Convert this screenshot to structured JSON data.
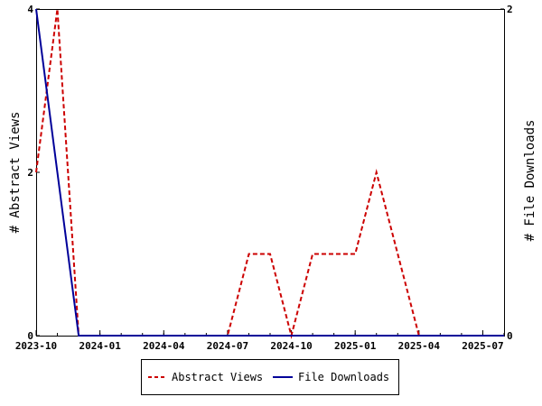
{
  "chart_data": {
    "type": "line",
    "x_axis": {
      "type": "date",
      "range": [
        "2023-10",
        "2025-08"
      ],
      "tick_labels": [
        "2023-10",
        "2024-01",
        "2024-04",
        "2024-07",
        "2024-10",
        "2025-01",
        "2025-04",
        "2025-07"
      ]
    },
    "y_left": {
      "label": "# Abstract Views",
      "range": [
        0,
        4
      ],
      "tick_labels": [
        "0",
        "2",
        "4"
      ]
    },
    "y_right": {
      "label": "# File Downloads",
      "range": [
        0,
        2
      ],
      "tick_labels": [
        "0",
        "2"
      ]
    },
    "series": [
      {
        "name": "Abstract Views",
        "axis": "left",
        "color": "#cc0000",
        "style": "dashed",
        "x": [
          "2023-10",
          "2023-11",
          "2023-12",
          "2024-01",
          "2024-02",
          "2024-03",
          "2024-04",
          "2024-05",
          "2024-06",
          "2024-07",
          "2024-08",
          "2024-09",
          "2024-10",
          "2024-11",
          "2024-12",
          "2025-01",
          "2025-02",
          "2025-03",
          "2025-04",
          "2025-05",
          "2025-06",
          "2025-07",
          "2025-08"
        ],
        "values": [
          2,
          4,
          0,
          0,
          0,
          0,
          0,
          0,
          0,
          0,
          1,
          1,
          0,
          1,
          1,
          1,
          2,
          1,
          0,
          0,
          0,
          0,
          0
        ]
      },
      {
        "name": "File Downloads",
        "axis": "right",
        "color": "#000099",
        "style": "solid",
        "x": [
          "2023-10",
          "2023-11",
          "2023-12",
          "2024-01",
          "2024-02",
          "2024-03",
          "2024-04",
          "2024-05",
          "2024-06",
          "2024-07",
          "2024-08",
          "2024-09",
          "2024-10",
          "2024-11",
          "2024-12",
          "2025-01",
          "2025-02",
          "2025-03",
          "2025-04",
          "2025-05",
          "2025-06",
          "2025-07",
          "2025-08"
        ],
        "values": [
          2,
          1,
          0,
          0,
          0,
          0,
          0,
          0,
          0,
          0,
          0,
          0,
          0,
          0,
          0,
          0,
          0,
          0,
          0,
          0,
          0,
          0,
          0
        ]
      }
    ],
    "grid": false,
    "legend": {
      "placement": "bottom-center",
      "entries": [
        "Abstract Views",
        "File Downloads"
      ]
    }
  }
}
